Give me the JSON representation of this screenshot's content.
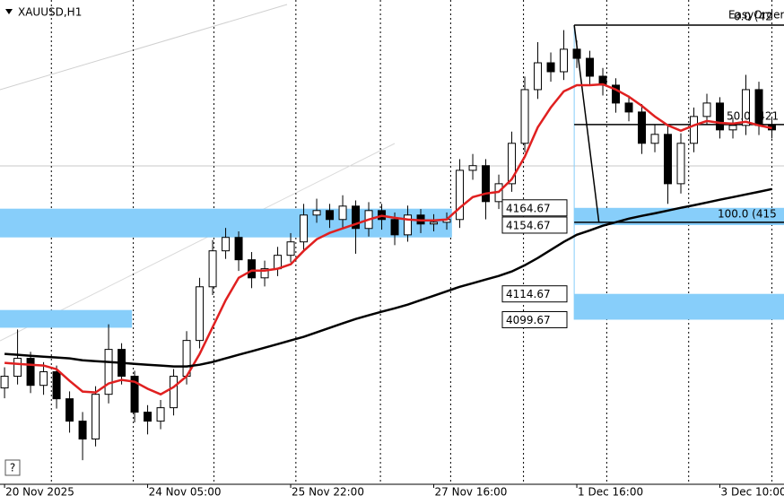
{
  "chart_data": {
    "type": "candlestick",
    "title": "XAUUSD,H1",
    "overlay_text": "EasyOrder",
    "help_button": "?",
    "xlim": [
      -0.35,
      59.93
    ],
    "ylim": [
      4004.0,
      4285.5
    ],
    "xticks": [
      {
        "value": 0,
        "label": "20 Nov 2025"
      },
      {
        "value": 11,
        "label": "24 Nov 05:00"
      },
      {
        "value": 22,
        "label": "25 Nov 22:00"
      },
      {
        "value": 33,
        "label": "27 Nov 16:00"
      },
      {
        "value": 44,
        "label": "1 Dec 16:00"
      },
      {
        "value": 55,
        "label": "3 Dec 10:00"
      }
    ],
    "grid_x": [
      3.6,
      9.9,
      16.1,
      22.4,
      28.9,
      34.3,
      39.9,
      46.3,
      52.6,
      59
    ],
    "open": [
      4060.0,
      4066.8,
      4077.2,
      4061.5,
      4069.4,
      4053.7,
      4040.7,
      4030.3,
      4056.3,
      4082.4,
      4066.8,
      4045.9,
      4040.7,
      4048.5,
      4066.8,
      4087.6,
      4118.8,
      4139.7,
      4147.5,
      4134.5,
      4124.0,
      4129.3,
      4137.1,
      4144.9,
      4160.5,
      4163.1,
      4157.9,
      4165.7,
      4152.7,
      4163.1,
      4157.9,
      4149.0,
      4160.5,
      4155.3,
      4156.3,
      4157.9,
      4186.5,
      4189.2,
      4168.3,
      4178.7,
      4202.2,
      4233.4,
      4249.0,
      4243.8,
      4256.9,
      4251.6,
      4241.2,
      4236.0,
      4225.6,
      4220.4,
      4202.2,
      4207.4,
      4178.7,
      4202.2,
      4217.8,
      4225.6,
      4210.0,
      4212.6,
      4233.4,
      4212.6
    ],
    "high": [
      4072,
      4094,
      4081,
      4075,
      4073,
      4058,
      4046,
      4061,
      4097,
      4086,
      4070,
      4050,
      4053,
      4071,
      4093,
      4124,
      4146,
      4153,
      4151,
      4139,
      4134,
      4142,
      4150,
      4167,
      4170,
      4167,
      4172,
      4169,
      4168,
      4167,
      4162,
      4166,
      4164,
      4161,
      4162,
      4193,
      4196,
      4193,
      4184,
      4209,
      4241,
      4261,
      4255,
      4268,
      4262,
      4256,
      4246,
      4240,
      4230,
      4225,
      4213,
      4212,
      4208,
      4223,
      4231,
      4229,
      4217,
      4242,
      4238,
      4217
    ],
    "low": [
      4054,
      4062,
      4057,
      4056,
      4048,
      4034,
      4018,
      4026,
      4051,
      4062,
      4040,
      4033,
      4036,
      4044,
      4062,
      4083,
      4114,
      4135,
      4128,
      4118,
      4119,
      4125,
      4133,
      4140,
      4156,
      4153,
      4153,
      4138,
      4148,
      4152,
      4143,
      4145,
      4150,
      4151,
      4152,
      4153,
      4181,
      4158,
      4164,
      4174,
      4197,
      4228,
      4238,
      4239,
      4246,
      4236,
      4230,
      4220,
      4215,
      4196,
      4197,
      4167,
      4173,
      4197,
      4213,
      4205,
      4205,
      4207,
      4207,
      4205
    ],
    "close": [
      4066.8,
      4077.2,
      4061.5,
      4069.4,
      4053.7,
      4040.7,
      4030.3,
      4056.3,
      4082.4,
      4066.8,
      4045.9,
      4040.7,
      4048.5,
      4066.8,
      4087.6,
      4118.8,
      4139.7,
      4147.5,
      4134.5,
      4124.0,
      4129.3,
      4137.1,
      4144.9,
      4160.5,
      4163.1,
      4157.9,
      4165.7,
      4152.7,
      4163.1,
      4157.9,
      4149.0,
      4160.5,
      4155.3,
      4156.3,
      4157.9,
      4186.5,
      4189.2,
      4168.3,
      4178.7,
      4202.2,
      4233.4,
      4249.0,
      4243.8,
      4256.9,
      4251.6,
      4241.2,
      4236.0,
      4225.6,
      4220.4,
      4202.2,
      4207.4,
      4178.7,
      4202.2,
      4217.8,
      4225.6,
      4210.0,
      4212.6,
      4233.4,
      4212.6,
      4210.0
    ],
    "series": [
      {
        "color": "#e02020",
        "values": [
          4074.6,
          4074.0,
          4073.5,
          4073.0,
          4070.9,
          4064.1,
          4057.9,
          4057.4,
          4062.6,
          4064.7,
          4063.6,
          4059.5,
          4056.3,
          4060.5,
          4066.8,
          4079.8,
          4095.4,
          4111.0,
          4124.0,
          4128.2,
          4128.2,
          4129.3,
          4131.9,
          4139.7,
          4146.4,
          4150.1,
          4152.7,
          4155.3,
          4157.9,
          4160.0,
          4158.9,
          4157.9,
          4157.4,
          4157.4,
          4157.9,
          4164.7,
          4170.9,
          4173.0,
          4174.0,
          4181.3,
          4194.4,
          4211.5,
          4223.0,
          4232.4,
          4236.0,
          4236.0,
          4236.5,
          4233.4,
          4229.3,
          4224.0,
          4217.8,
          4212.6,
          4209.5,
          4212.6,
          4215.2,
          4214.1,
          4213.6,
          4214.7,
          4212.6,
          4211.0
        ]
      },
      {
        "color": "#000000",
        "values": [
          4079.8,
          4079.3,
          4078.7,
          4078.2,
          4077.7,
          4077.2,
          4076.1,
          4075.6,
          4075.1,
          4074.6,
          4074.0,
          4073.5,
          4073.0,
          4072.5,
          4072.5,
          4073.5,
          4075.1,
          4077.2,
          4079.3,
          4081.3,
          4083.4,
          4085.5,
          4087.6,
          4089.7,
          4092.3,
          4094.9,
          4097.5,
          4100.1,
          4102.2,
          4104.3,
          4106.3,
          4108.4,
          4111.0,
          4113.6,
          4116.2,
          4118.8,
          4120.9,
          4123.0,
          4125.1,
          4127.7,
          4131.3,
          4135.5,
          4140.2,
          4144.9,
          4149.0,
          4151.6,
          4154.3,
          4156.3,
          4158.4,
          4160.0,
          4161.5,
          4163.1,
          4164.7,
          4166.2,
          4167.8,
          4169.4,
          4170.9,
          4172.5,
          4174.0,
          4175.6
        ]
      }
    ],
    "zones": [
      {
        "low": 4147.5,
        "high": 4164.2,
        "start": -0.35,
        "end": 34.4
      },
      {
        "low": 4095.0,
        "high": 4105.3,
        "start": -0.35,
        "end": 9.8
      },
      {
        "low": 4154.67,
        "high": 4164.67,
        "start": 43.8,
        "end": 59.93,
        "labeled": true
      },
      {
        "low": 4099.67,
        "high": 4114.67,
        "start": 43.8,
        "end": 59.93,
        "labeled": true
      }
    ],
    "fib": {
      "from": {
        "x": 43.8,
        "price": 4270.9
      },
      "to": {
        "x": 45.7,
        "price": 4156.3
      },
      "levels": [
        {
          "price": 4270.9,
          "label": "0.0 (42"
        },
        {
          "price": 4213.1,
          "label": "50.0 (421"
        },
        {
          "price": 4156.3,
          "label": "100.0 (415"
        }
      ]
    }
  }
}
